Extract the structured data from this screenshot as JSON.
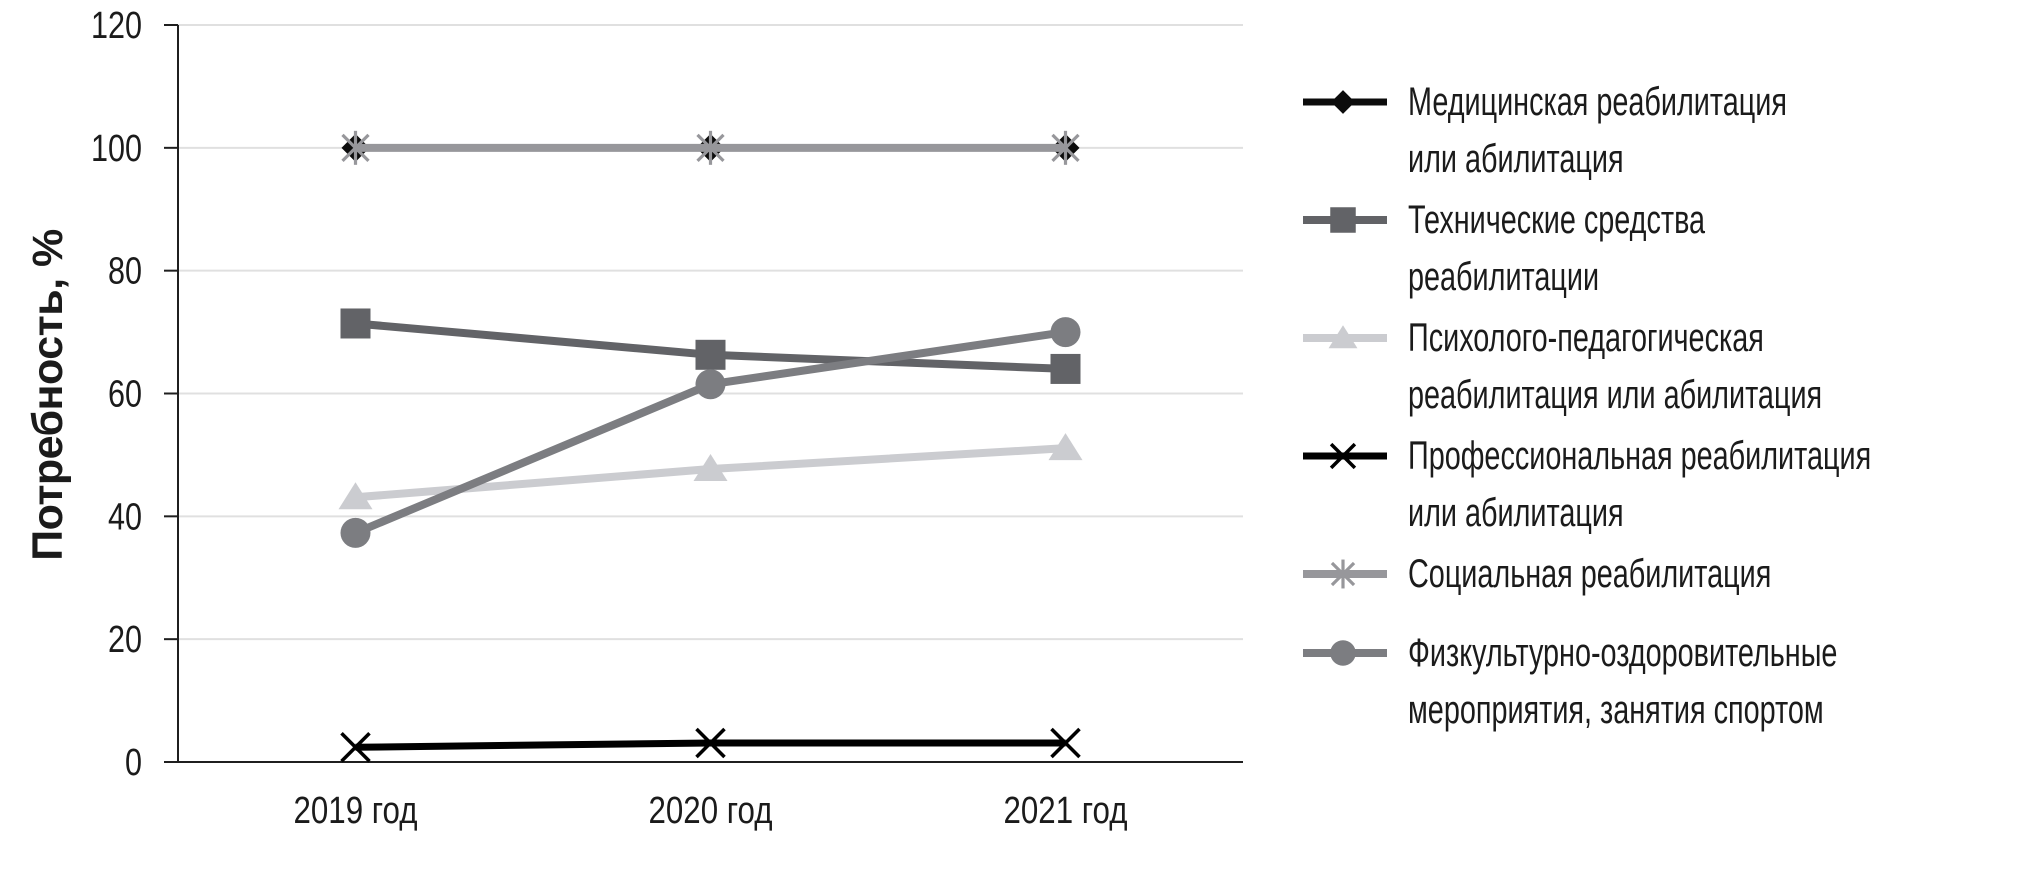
{
  "chart_data": {
    "type": "line",
    "title": "",
    "ylabel": "Потребность, %",
    "xlabel": "",
    "categories": [
      "2019 год",
      "2020 год",
      "2021 год"
    ],
    "y_axis": {
      "min": 0,
      "max": 120,
      "tick_step": 20,
      "ticks": [
        0,
        20,
        40,
        60,
        80,
        100,
        120
      ]
    },
    "grid": "horizontal",
    "legend_position": "right",
    "gridline_color": "#e0e0e0",
    "axis_color": "#1f1f1f",
    "text_color": "#1b1b1b",
    "series": [
      {
        "name": "Медицинская реабилитация или абилитация",
        "name_lines": [
          "Медицинская реабилитация",
          "или абилитация"
        ],
        "marker": "diamond",
        "color": "#0c0c0c",
        "values": [
          100,
          100,
          100
        ]
      },
      {
        "name": "Технические средства реабилитации",
        "name_lines": [
          "Технические средства",
          "реабилитации"
        ],
        "marker": "square",
        "color": "#626367",
        "values": [
          71.4,
          66.3,
          64
        ]
      },
      {
        "name": "Психолого-педагогическая реабилитация или абилитация",
        "name_lines": [
          "Психолого-педагогическая",
          "реабилитация или абилитация"
        ],
        "marker": "triangle",
        "color": "#cbccd0",
        "values": [
          43.1,
          47.7,
          51.1
        ]
      },
      {
        "name": "Профессиональная реабилитация или абилитация",
        "name_lines": [
          "Профессиональная реабилитация",
          "или абилитация"
        ],
        "marker": "x",
        "color": "#000000",
        "values": [
          2.4,
          3.1,
          3.1
        ]
      },
      {
        "name": "Социальная реабилитация",
        "name_lines": [
          "Социальная реабилитация"
        ],
        "marker": "asterisk",
        "color": "#97979b",
        "values": [
          100,
          100,
          100
        ]
      },
      {
        "name": "Физкультурно-оздоровительные мероприятия, занятия спортом",
        "name_lines": [
          "Физкультурно-оздоровительные",
          "мероприятия, занятия спортом"
        ],
        "marker": "circle",
        "color": "#7c7d81",
        "values": [
          37.3,
          61.5,
          70
        ]
      }
    ]
  }
}
